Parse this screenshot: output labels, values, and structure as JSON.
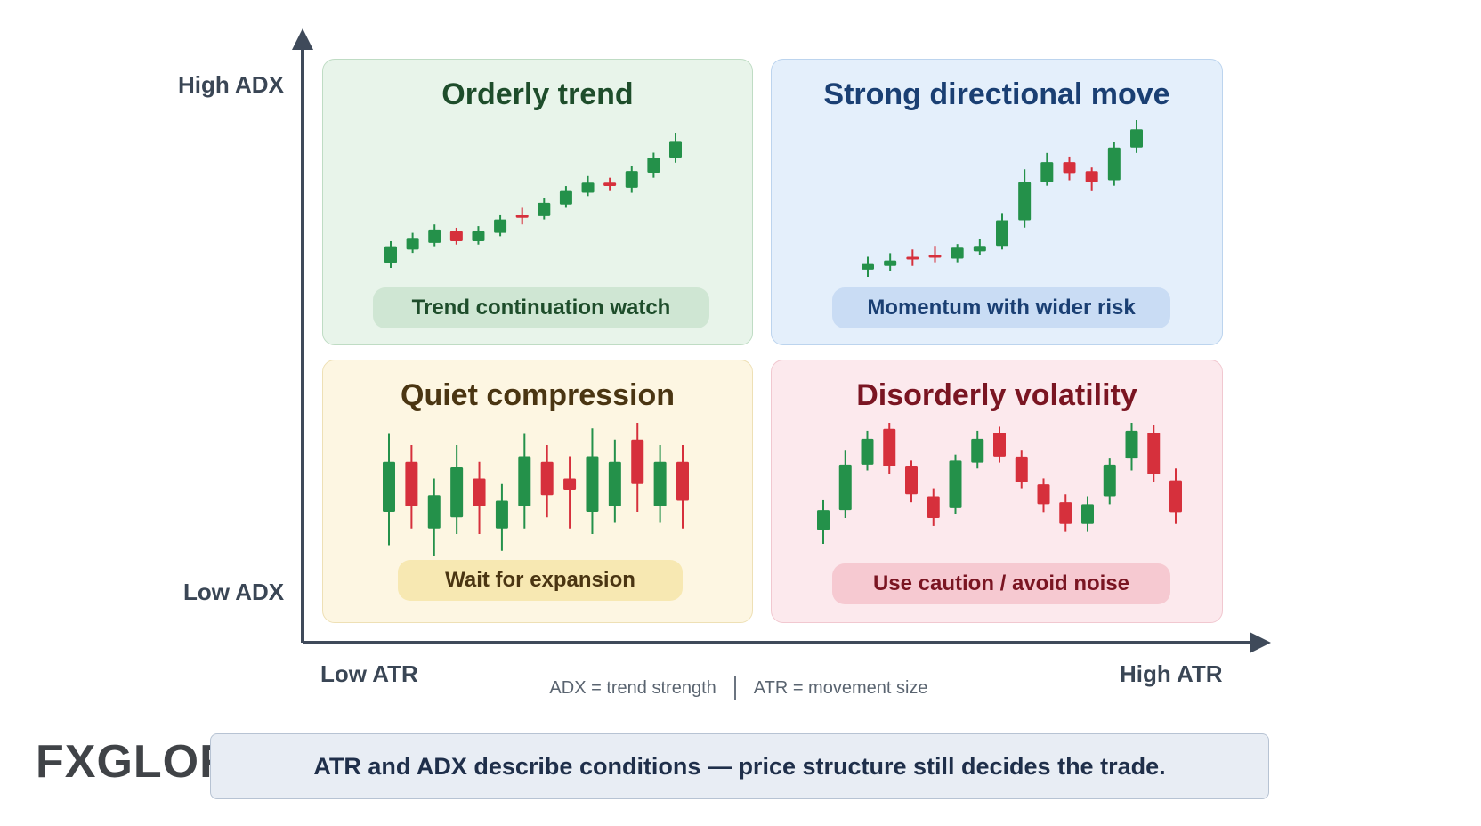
{
  "axes": {
    "y_high": "High ADX",
    "y_low": "Low ADX",
    "x_low": "Low ATR",
    "x_high": "High ATR"
  },
  "quadrants": {
    "orderly_trend": {
      "title": "Orderly trend",
      "pill": "Trend continuation watch",
      "title_color": "#1e4d2b",
      "pill_bg": "#cfe6d3",
      "candles": [
        {
          "o": 1,
          "c": 3,
          "h": 3.6,
          "l": 0.4
        },
        {
          "o": 2.6,
          "c": 4,
          "h": 4.6,
          "l": 2.2
        },
        {
          "o": 3.4,
          "c": 5,
          "h": 5.6,
          "l": 3
        },
        {
          "o": 4.8,
          "c": 3.6,
          "h": 5.2,
          "l": 3.2
        },
        {
          "o": 3.6,
          "c": 4.8,
          "h": 5.4,
          "l": 3.2
        },
        {
          "o": 4.6,
          "c": 6.2,
          "h": 6.8,
          "l": 4.2
        },
        {
          "o": 6.8,
          "c": 6.4,
          "h": 7.6,
          "l": 5.6
        },
        {
          "o": 6.6,
          "c": 8.2,
          "h": 8.8,
          "l": 6.2
        },
        {
          "o": 8,
          "c": 9.6,
          "h": 10.2,
          "l": 7.6
        },
        {
          "o": 9.4,
          "c": 10.6,
          "h": 11.4,
          "l": 9
        },
        {
          "o": 10.6,
          "c": 10.2,
          "h": 11.2,
          "l": 9.6
        },
        {
          "o": 10,
          "c": 12,
          "h": 12.6,
          "l": 9.4
        },
        {
          "o": 11.8,
          "c": 13.6,
          "h": 14.2,
          "l": 11.2
        },
        {
          "o": 13.6,
          "c": 15.6,
          "h": 16.6,
          "l": 13
        }
      ]
    },
    "strong_directional_move": {
      "title": "Strong directional move",
      "pill": "Momentum with wider risk",
      "title_color": "#1a3f73",
      "pill_bg": "#c9dcf4",
      "candles": [
        {
          "o": 1,
          "c": 1.6,
          "h": 2.4,
          "l": 0.2
        },
        {
          "o": 1.4,
          "c": 2,
          "h": 2.8,
          "l": 0.8
        },
        {
          "o": 2.4,
          "c": 2.2,
          "h": 3.2,
          "l": 1.4
        },
        {
          "o": 2.6,
          "c": 2.4,
          "h": 3.6,
          "l": 1.8
        },
        {
          "o": 2.2,
          "c": 3.4,
          "h": 3.8,
          "l": 1.8
        },
        {
          "o": 3,
          "c": 3.6,
          "h": 4.4,
          "l": 2.6
        },
        {
          "o": 3.6,
          "c": 6.4,
          "h": 7.2,
          "l": 3.2
        },
        {
          "o": 6.4,
          "c": 10.6,
          "h": 12,
          "l": 5.6
        },
        {
          "o": 10.6,
          "c": 12.8,
          "h": 13.8,
          "l": 10.2
        },
        {
          "o": 12.8,
          "c": 11.6,
          "h": 13.4,
          "l": 10.8
        },
        {
          "o": 11.8,
          "c": 10.6,
          "h": 12.2,
          "l": 9.6
        },
        {
          "o": 10.8,
          "c": 14.4,
          "h": 15,
          "l": 10.2
        },
        {
          "o": 14.4,
          "c": 16.4,
          "h": 17.4,
          "l": 13.8
        }
      ]
    },
    "quiet_compression": {
      "title": "Quiet compression",
      "pill": "Wait for expansion",
      "title_color": "#4a3512",
      "pill_bg": "#f7e8b2",
      "candles": [
        {
          "o": 5,
          "c": 6.8,
          "h": 7.8,
          "l": 3.8
        },
        {
          "o": 6.8,
          "c": 5.2,
          "h": 7.4,
          "l": 4.4
        },
        {
          "o": 4.4,
          "c": 5.6,
          "h": 6.2,
          "l": 3.4
        },
        {
          "o": 4.8,
          "c": 6.6,
          "h": 7.4,
          "l": 4.2
        },
        {
          "o": 6.2,
          "c": 5.2,
          "h": 6.8,
          "l": 4.2
        },
        {
          "o": 4.4,
          "c": 5.4,
          "h": 6,
          "l": 3.6
        },
        {
          "o": 5.2,
          "c": 7,
          "h": 7.8,
          "l": 4.4
        },
        {
          "o": 6.8,
          "c": 5.6,
          "h": 7.4,
          "l": 4.8
        },
        {
          "o": 6.2,
          "c": 5.8,
          "h": 7,
          "l": 4.4
        },
        {
          "o": 5,
          "c": 7,
          "h": 8,
          "l": 4.2
        },
        {
          "o": 5.2,
          "c": 6.8,
          "h": 7.6,
          "l": 4.6
        },
        {
          "o": 7.6,
          "c": 6,
          "h": 8.2,
          "l": 5
        },
        {
          "o": 5.2,
          "c": 6.8,
          "h": 7.4,
          "l": 4.6
        },
        {
          "o": 6.8,
          "c": 5.4,
          "h": 7.4,
          "l": 4.4
        }
      ]
    },
    "disorderly_volatility": {
      "title": "Disorderly volatility",
      "pill": "Use caution / avoid noise",
      "title_color": "#7a1522",
      "pill_bg": "#f6c9d1",
      "candles": [
        {
          "o": 3,
          "c": 5,
          "h": 6,
          "l": 1.6
        },
        {
          "o": 5,
          "c": 9.6,
          "h": 11,
          "l": 4.2
        },
        {
          "o": 9.6,
          "c": 12.2,
          "h": 13,
          "l": 9
        },
        {
          "o": 13.2,
          "c": 9.4,
          "h": 13.8,
          "l": 8.6
        },
        {
          "o": 9.4,
          "c": 6.6,
          "h": 10,
          "l": 5.8
        },
        {
          "o": 6.4,
          "c": 4.2,
          "h": 7.2,
          "l": 3.4
        },
        {
          "o": 5.2,
          "c": 10,
          "h": 10.6,
          "l": 4.6
        },
        {
          "o": 9.8,
          "c": 12.2,
          "h": 13,
          "l": 9.2
        },
        {
          "o": 12.8,
          "c": 10.4,
          "h": 13.4,
          "l": 9.8
        },
        {
          "o": 10.4,
          "c": 7.8,
          "h": 11,
          "l": 7.2
        },
        {
          "o": 7.6,
          "c": 5.6,
          "h": 8.2,
          "l": 4.8
        },
        {
          "o": 5.8,
          "c": 3.6,
          "h": 6.6,
          "l": 2.8
        },
        {
          "o": 3.6,
          "c": 5.6,
          "h": 6.4,
          "l": 2.8
        },
        {
          "o": 6.4,
          "c": 9.6,
          "h": 10.2,
          "l": 5.6
        },
        {
          "o": 10.2,
          "c": 13,
          "h": 13.8,
          "l": 9
        },
        {
          "o": 12.8,
          "c": 8.6,
          "h": 13.6,
          "l": 7.8
        },
        {
          "o": 8,
          "c": 4.8,
          "h": 9.2,
          "l": 3.6
        }
      ]
    }
  },
  "colors": {
    "bull": "#24914a",
    "bear": "#d6303c",
    "axis": "#3f4a5a"
  },
  "legend": {
    "adx": "ADX = trend strength",
    "atr": "ATR = movement size"
  },
  "footer": {
    "message": "ATR and ADX describe conditions — price structure still decides the trade."
  },
  "logo": {
    "part1": "FX",
    "part2": "GLORY"
  }
}
